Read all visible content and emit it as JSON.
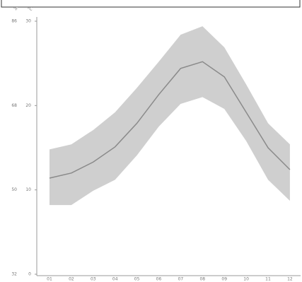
{
  "chart_data": {
    "type": "line",
    "y_label": "°C",
    "y2_label": "°F",
    "categories": [
      "01",
      "02",
      "03",
      "04",
      "05",
      "06",
      "07",
      "08",
      "09",
      "10",
      "11",
      "12"
    ],
    "values": [
      11.4,
      12.0,
      13.3,
      15.1,
      17.9,
      21.3,
      24.4,
      25.2,
      23.4,
      19.2,
      15.0,
      12.4
    ],
    "high": [
      14.8,
      15.4,
      17.1,
      19.2,
      22.1,
      25.2,
      28.4,
      29.4,
      26.9,
      22.5,
      17.9,
      15.4
    ],
    "low": [
      8.2,
      8.2,
      9.9,
      11.2,
      14.1,
      17.5,
      20.2,
      21.0,
      19.6,
      15.8,
      11.2,
      8.7
    ],
    "color": "#8a8a8a",
    "band_color": "#cfcfcf",
    "ylim": [
      0,
      30
    ],
    "yticks": [
      0,
      10,
      20,
      30
    ],
    "y2lim": [
      32,
      86
    ],
    "y2ticks": [
      32,
      50,
      68,
      86
    ]
  }
}
